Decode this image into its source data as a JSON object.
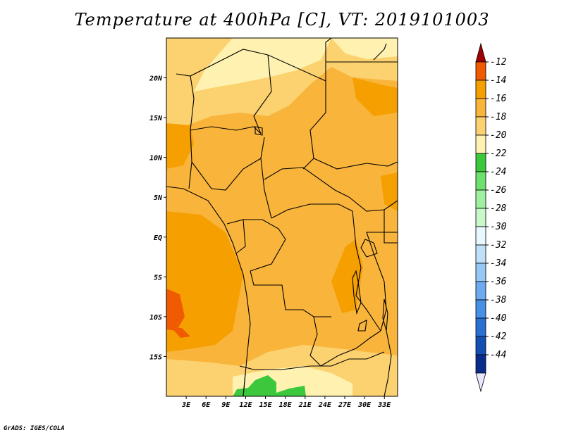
{
  "title": "Temperature at 400hPa [C], VT: 2019101003",
  "credit": "GrADS: IGES/COLA",
  "map": {
    "lat_range": [
      -20,
      25
    ],
    "lon_range": [
      0,
      35
    ],
    "lat_ticks": [
      {
        "lat": 20,
        "label": "20N"
      },
      {
        "lat": 15,
        "label": "15N"
      },
      {
        "lat": 10,
        "label": "10N"
      },
      {
        "lat": 5,
        "label": "5N"
      },
      {
        "lat": 0,
        "label": "EQ"
      },
      {
        "lat": -5,
        "label": "5S"
      },
      {
        "lat": -10,
        "label": "10S"
      },
      {
        "lat": -15,
        "label": "15S"
      }
    ],
    "lon_ticks": [
      {
        "lon": 3,
        "label": "3E"
      },
      {
        "lon": 6,
        "label": "6E"
      },
      {
        "lon": 9,
        "label": "9E"
      },
      {
        "lon": 12,
        "label": "12E"
      },
      {
        "lon": 15,
        "label": "15E"
      },
      {
        "lon": 18,
        "label": "18E"
      },
      {
        "lon": 21,
        "label": "21E"
      },
      {
        "lon": 24,
        "label": "24E"
      },
      {
        "lon": 27,
        "label": "27E"
      },
      {
        "lon": 30,
        "label": "30E"
      },
      {
        "lon": 33,
        "label": "33E"
      }
    ]
  },
  "colorbar": {
    "bins": [
      {
        "color": "#a00000"
      },
      {
        "color": "#f05a00"
      },
      {
        "color": "#f5a000"
      },
      {
        "color": "#f9b43c"
      },
      {
        "color": "#fcd270"
      },
      {
        "color": "#fff2b0"
      },
      {
        "color": "#3cc83c"
      },
      {
        "color": "#6ee06e"
      },
      {
        "color": "#a0f0a0"
      },
      {
        "color": "#c8f8c8"
      },
      {
        "color": "#e8f8ff"
      },
      {
        "color": "#c0e0fa"
      },
      {
        "color": "#96c8f5"
      },
      {
        "color": "#6eaaf0"
      },
      {
        "color": "#4690e6"
      },
      {
        "color": "#2870d2"
      },
      {
        "color": "#1450b4"
      },
      {
        "color": "#0a2d8c"
      },
      {
        "color": "#e6e6ff"
      }
    ],
    "labels": [
      "-12",
      "-14",
      "-16",
      "-18",
      "-20",
      "-22",
      "-24",
      "-26",
      "-28",
      "-30",
      "-32",
      "-34",
      "-36",
      "-38",
      "-40",
      "-42",
      "-44"
    ]
  },
  "field_colors": {
    "t_m14": "#f5a000",
    "t_m16": "#f9b43c",
    "t_m18": "#fcd270",
    "t_m20": "#fff2b0",
    "t_m12": "#f05a00",
    "t_m24": "#3cc83c"
  }
}
